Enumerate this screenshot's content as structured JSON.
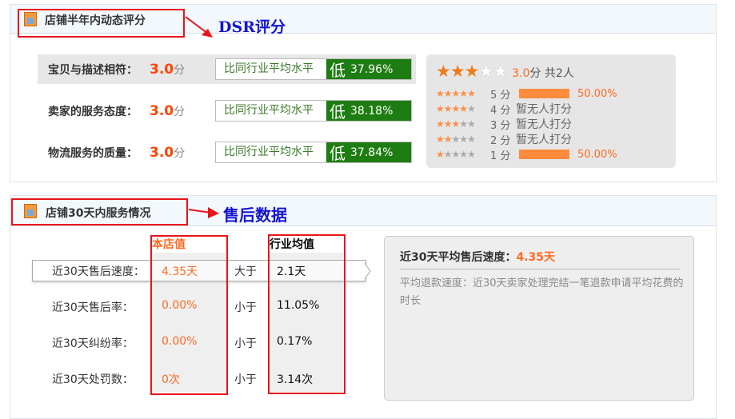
{
  "dsr": {
    "title": "店铺半年内动态评分",
    "annotation": "DSR评分",
    "rows": [
      {
        "label": "宝贝与描述相符：",
        "score": "3.0",
        "unit": "分",
        "compare": "比同行业平均水平",
        "level": "低",
        "pct": "37.96%"
      },
      {
        "label": "卖家的服务态度：",
        "score": "3.0",
        "unit": "分",
        "compare": "比同行业平均水平",
        "level": "低",
        "pct": "38.18%"
      },
      {
        "label": "物流服务的质量：",
        "score": "3.0",
        "unit": "分",
        "compare": "比同行业平均水平",
        "level": "低",
        "pct": "37.84%"
      }
    ],
    "rating": {
      "stars": 3,
      "score": "3.0",
      "unit": "分",
      "total": "共2人",
      "breakdown": [
        {
          "stars": 5,
          "label": "5 分",
          "share": 50,
          "text": "50.00%"
        },
        {
          "stars": 4,
          "label": "4 分",
          "share": 0,
          "text": "暂无人打分"
        },
        {
          "stars": 3,
          "label": "3 分",
          "share": 0,
          "text": "暂无人打分"
        },
        {
          "stars": 2,
          "label": "2 分",
          "share": 0,
          "text": "暂无人打分"
        },
        {
          "stars": 1,
          "label": "1 分",
          "share": 50,
          "text": "50.00%"
        }
      ]
    }
  },
  "service": {
    "title": "店铺30天内服务情况",
    "annotation": "售后数据",
    "col_shop": "本店值",
    "col_industry": "行业均值",
    "rows": [
      {
        "label": "近30天售后速度：",
        "shop": "4.35天",
        "cmp": "大于",
        "industry": "2.1天"
      },
      {
        "label": "近30天售后率：",
        "shop": "0.00%",
        "cmp": "小于",
        "industry": "11.05%"
      },
      {
        "label": "近30天纠纷率：",
        "shop": "0.00%",
        "cmp": "小于",
        "industry": "0.17%"
      },
      {
        "label": "近30天处罚数：",
        "shop": "0次",
        "cmp": "小于",
        "industry": "3.14次"
      }
    ],
    "detail": {
      "title": "近30天平均售后速度：",
      "value": "4.35天",
      "desc": "平均退款速度：近30天卖家处理完结一笔退款申请平均花费的时长"
    }
  },
  "colors": {
    "accent": "#ff4400",
    "green": "#1e7d12",
    "annotation_red": "#e8141b",
    "annotation_blue": "#1414d2"
  }
}
